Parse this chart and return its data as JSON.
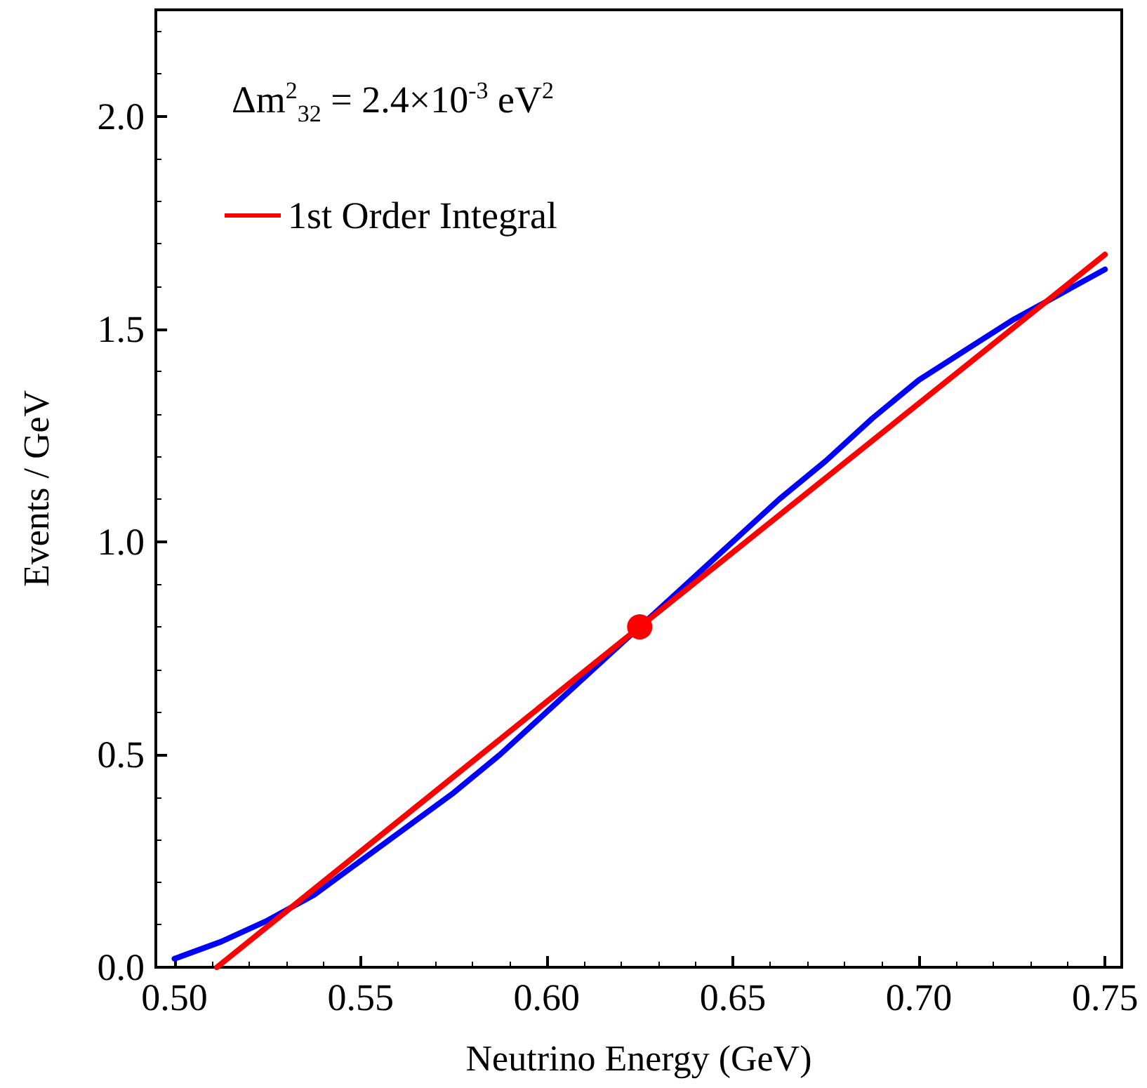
{
  "chart_data": {
    "type": "line",
    "xlabel": "Neutrino Energy (GeV)",
    "ylabel": "Events / GeV",
    "annotations": [
      "Δm$^{2}$$_{32}$ = 2.4×10$^{-3}$ eV$^{2}$"
    ],
    "xlim": [
      0.495,
      0.7545
    ],
    "ylim": [
      0,
      2.25
    ],
    "xticks": [
      {
        "value": 0.5,
        "label": "0.50"
      },
      {
        "value": 0.55,
        "label": "0.55"
      },
      {
        "value": 0.6,
        "label": "0.60"
      },
      {
        "value": 0.65,
        "label": "0.65"
      },
      {
        "value": 0.7,
        "label": "0.70"
      },
      {
        "value": 0.75,
        "label": "0.75"
      }
    ],
    "yticks": [
      {
        "value": 0,
        "label": "0.0"
      },
      {
        "value": 0.5,
        "label": "0.5"
      },
      {
        "value": 1,
        "label": "1.0"
      },
      {
        "value": 1.5,
        "label": "1.5"
      },
      {
        "value": 2,
        "label": "2.0"
      }
    ],
    "grid": false,
    "legend": "top left",
    "marker": "none",
    "line_style": "solid",
    "series": [
      {
        "color": "#0000ff",
        "x": [
          0.5,
          0.5125,
          0.525,
          0.5375,
          0.55,
          0.5625,
          0.575,
          0.5875,
          0.6,
          0.6125,
          0.6375,
          0.65,
          0.6625,
          0.675,
          0.6875,
          0.7,
          0.7125,
          0.725,
          0.7375,
          0.75
        ],
        "values": [
          0.02,
          0.06,
          0.11,
          0.17,
          0.25,
          0.33,
          0.41,
          0.5,
          0.6,
          0.7,
          0.9,
          1.0,
          1.1,
          1.19,
          1.29,
          1.38,
          1.45,
          1.52,
          1.58,
          1.64
        ]
      },
      {
        "name": "1st Order Integral",
        "color": "#ff0000",
        "x": [
          0.5114,
          0.625,
          0.75
        ],
        "values": [
          0,
          0.8,
          1.675
        ]
      },
      {
        "type": "scatter",
        "marker": "circle",
        "color": "#ff0000",
        "x": [
          0.625
        ],
        "values": [
          0.8
        ]
      }
    ]
  }
}
